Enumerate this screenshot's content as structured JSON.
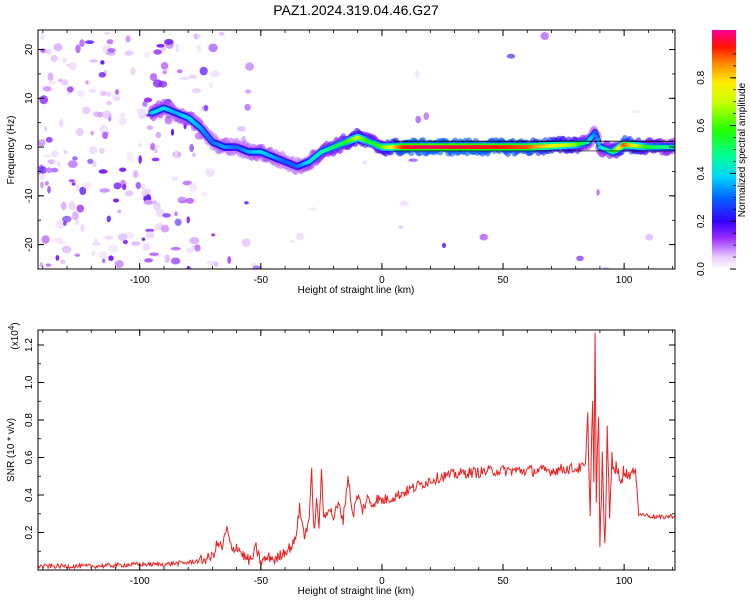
{
  "figure_title": "PAZ1.2024.319.04.46.G27",
  "colors": {
    "snr_line": "#ee2222",
    "axis": "#000000",
    "scatter_scale": [
      "#ffffff",
      "#7a00ff",
      "#0000ff",
      "#00c8ff",
      "#00ff55",
      "#ffff00",
      "#ff8800",
      "#ff0000",
      "#ff0088"
    ]
  },
  "chart_data": [
    {
      "type": "heatmap",
      "title": "PAZ1.2024.319.04.46.G27",
      "xlabel": "Height of straight line (km)",
      "ylabel": "Frequency (Hz)",
      "xlim": [
        -142,
        121
      ],
      "ylim": [
        -25,
        24
      ],
      "xticks": [
        -100,
        -50,
        0,
        50,
        100
      ],
      "xtick_labels": [
        "-100",
        "-50",
        "0",
        "50",
        "100"
      ],
      "yticks": [
        -20,
        -10,
        0,
        10,
        20
      ],
      "ytick_labels": [
        "-20",
        "-10",
        "0",
        "10",
        "20"
      ],
      "colorbar": {
        "label": "Normalized spectral amplitude",
        "range": [
          0,
          1
        ],
        "ticks": [
          0.0,
          0.2,
          0.4,
          0.6,
          0.8
        ],
        "tick_labels": [
          "0.0",
          "0.2",
          "0.4",
          "0.6",
          "0.8"
        ]
      },
      "ridge": {
        "x": [
          -95,
          -90,
          -85,
          -80,
          -75,
          -70,
          -65,
          -60,
          -55,
          -50,
          -45,
          -40,
          -35,
          -30,
          -25,
          -20,
          -15,
          -10,
          -5,
          0,
          5,
          10,
          20,
          40,
          60,
          80,
          85,
          88,
          90,
          95,
          100,
          110,
          121
        ],
        "frequency": [
          7,
          8,
          7,
          6,
          4,
          1,
          0,
          0,
          -1,
          -1,
          -2,
          -3,
          -4,
          -3,
          -1,
          0,
          1,
          2,
          1,
          0,
          0,
          0,
          0,
          0,
          0,
          0.5,
          1,
          3,
          0,
          -1,
          0.5,
          0,
          0
        ],
        "amplitude": [
          0.4,
          0.4,
          0.35,
          0.4,
          0.35,
          0.3,
          0.35,
          0.3,
          0.35,
          0.4,
          0.35,
          0.3,
          0.3,
          0.4,
          0.45,
          0.5,
          0.55,
          0.7,
          0.55,
          0.6,
          0.8,
          0.95,
          0.97,
          0.95,
          0.9,
          0.65,
          0.45,
          0.3,
          0.4,
          0.5,
          0.9,
          0.55,
          0.45
        ]
      }
    },
    {
      "type": "line",
      "xlabel": "Height of straight line (km)",
      "ylabel": "SNR (10 * v/v)",
      "exponent_label": "(x10",
      "exponent_sup": "4",
      "exponent_close": ")",
      "xlim": [
        -142,
        121
      ],
      "ylim": [
        0,
        1.28
      ],
      "xticks": [
        -100,
        -50,
        0,
        50,
        100
      ],
      "xtick_labels": [
        "-100",
        "-50",
        "0",
        "50",
        "100"
      ],
      "yticks": [
        0.2,
        0.4,
        0.6,
        0.8,
        1.0,
        1.2
      ],
      "ytick_labels": [
        "0.2",
        "0.4",
        "0.6",
        "0.8",
        "1.0",
        "1.2"
      ],
      "series": [
        {
          "x": [
            -142,
            -120,
            -100,
            -90,
            -80,
            -75,
            -70,
            -68,
            -66,
            -64,
            -62,
            -60,
            -58,
            -56,
            -54,
            -52,
            -50,
            -48,
            -46,
            -44,
            -42,
            -40,
            -38,
            -36,
            -34,
            -32,
            -30,
            -29,
            -28,
            -27,
            -26,
            -25,
            -24,
            -22,
            -20,
            -18,
            -16,
            -14,
            -12,
            -10,
            -8,
            -6,
            -4,
            -2,
            0,
            5,
            10,
            15,
            20,
            25,
            30,
            35,
            40,
            45,
            50,
            55,
            60,
            65,
            70,
            75,
            80,
            84,
            85,
            86,
            87,
            87.5,
            88,
            88.5,
            89,
            89.5,
            90,
            91,
            92,
            93,
            94,
            95,
            96,
            98,
            100,
            102,
            104,
            105,
            106,
            110,
            115,
            121
          ],
          "y": [
            0.02,
            0.02,
            0.03,
            0.03,
            0.04,
            0.05,
            0.07,
            0.14,
            0.12,
            0.22,
            0.1,
            0.13,
            0.09,
            0.06,
            0.05,
            0.12,
            0.04,
            0.06,
            0.07,
            0.05,
            0.08,
            0.1,
            0.12,
            0.15,
            0.33,
            0.18,
            0.28,
            0.52,
            0.2,
            0.36,
            0.24,
            0.51,
            0.27,
            0.34,
            0.28,
            0.35,
            0.27,
            0.5,
            0.29,
            0.4,
            0.32,
            0.38,
            0.35,
            0.38,
            0.37,
            0.39,
            0.42,
            0.45,
            0.48,
            0.5,
            0.51,
            0.52,
            0.52,
            0.53,
            0.53,
            0.53,
            0.53,
            0.53,
            0.53,
            0.54,
            0.54,
            0.55,
            0.8,
            0.3,
            0.95,
            0.45,
            1.26,
            0.35,
            0.62,
            0.85,
            0.08,
            0.6,
            0.1,
            0.72,
            0.3,
            0.6,
            0.55,
            0.5,
            0.52,
            0.51,
            0.52,
            0.5,
            0.3,
            0.29,
            0.28,
            0.29
          ]
        }
      ]
    }
  ]
}
